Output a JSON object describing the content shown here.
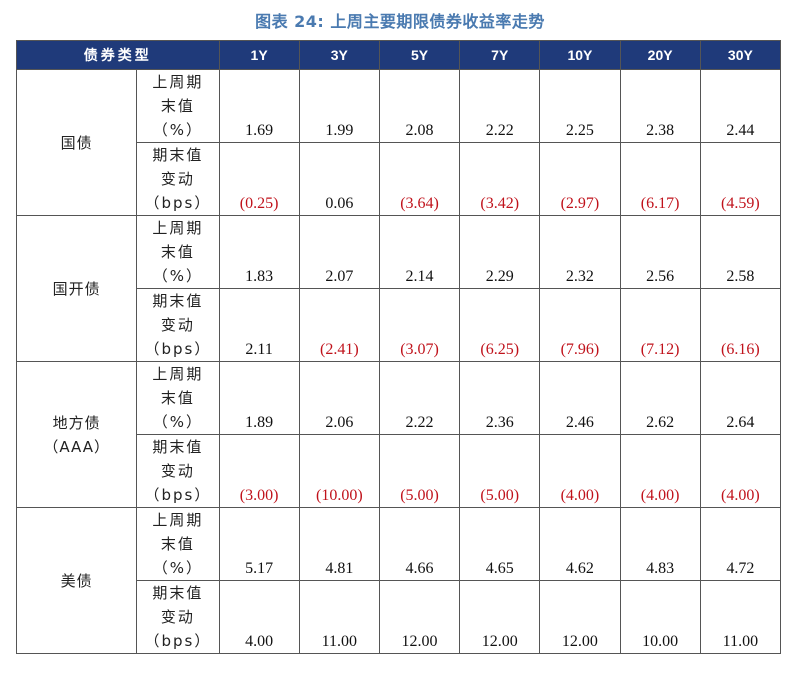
{
  "title": "图表 24: 上周主要期限债券收益率走势",
  "header": {
    "type_label": "债券类型",
    "tenors": [
      "1Y",
      "3Y",
      "5Y",
      "7Y",
      "10Y",
      "20Y",
      "30Y"
    ]
  },
  "metrics": {
    "level_label": [
      "上周期",
      "末值",
      "（%）"
    ],
    "change_label": [
      "期末值",
      "变动",
      "（bps）"
    ]
  },
  "rows": [
    {
      "bond": [
        "国债"
      ],
      "level": [
        "1.69",
        "1.99",
        "2.08",
        "2.22",
        "2.25",
        "2.38",
        "2.44"
      ],
      "change": [
        "(0.25)",
        "0.06",
        "(3.64)",
        "(3.42)",
        "(2.97)",
        "(6.17)",
        "(4.59)"
      ]
    },
    {
      "bond": [
        "国开债"
      ],
      "level": [
        "1.83",
        "2.07",
        "2.14",
        "2.29",
        "2.32",
        "2.56",
        "2.58"
      ],
      "change": [
        "2.11",
        "(2.41)",
        "(3.07)",
        "(6.25)",
        "(7.96)",
        "(7.12)",
        "(6.16)"
      ]
    },
    {
      "bond": [
        "地方债",
        "（AAA）"
      ],
      "level": [
        "1.89",
        "2.06",
        "2.22",
        "2.36",
        "2.46",
        "2.62",
        "2.64"
      ],
      "change": [
        "(3.00)",
        "(10.00)",
        "(5.00)",
        "(5.00)",
        "(4.00)",
        "(4.00)",
        "(4.00)"
      ]
    },
    {
      "bond": [
        "美债"
      ],
      "level": [
        "5.17",
        "4.81",
        "4.66",
        "4.65",
        "4.62",
        "4.83",
        "4.72"
      ],
      "change": [
        "4.00",
        "11.00",
        "12.00",
        "12.00",
        "12.00",
        "10.00",
        "11.00"
      ]
    }
  ],
  "colors": {
    "header_bg": "#1f3a7a",
    "negative": "#c0121b",
    "title": "#4a7ab0"
  }
}
